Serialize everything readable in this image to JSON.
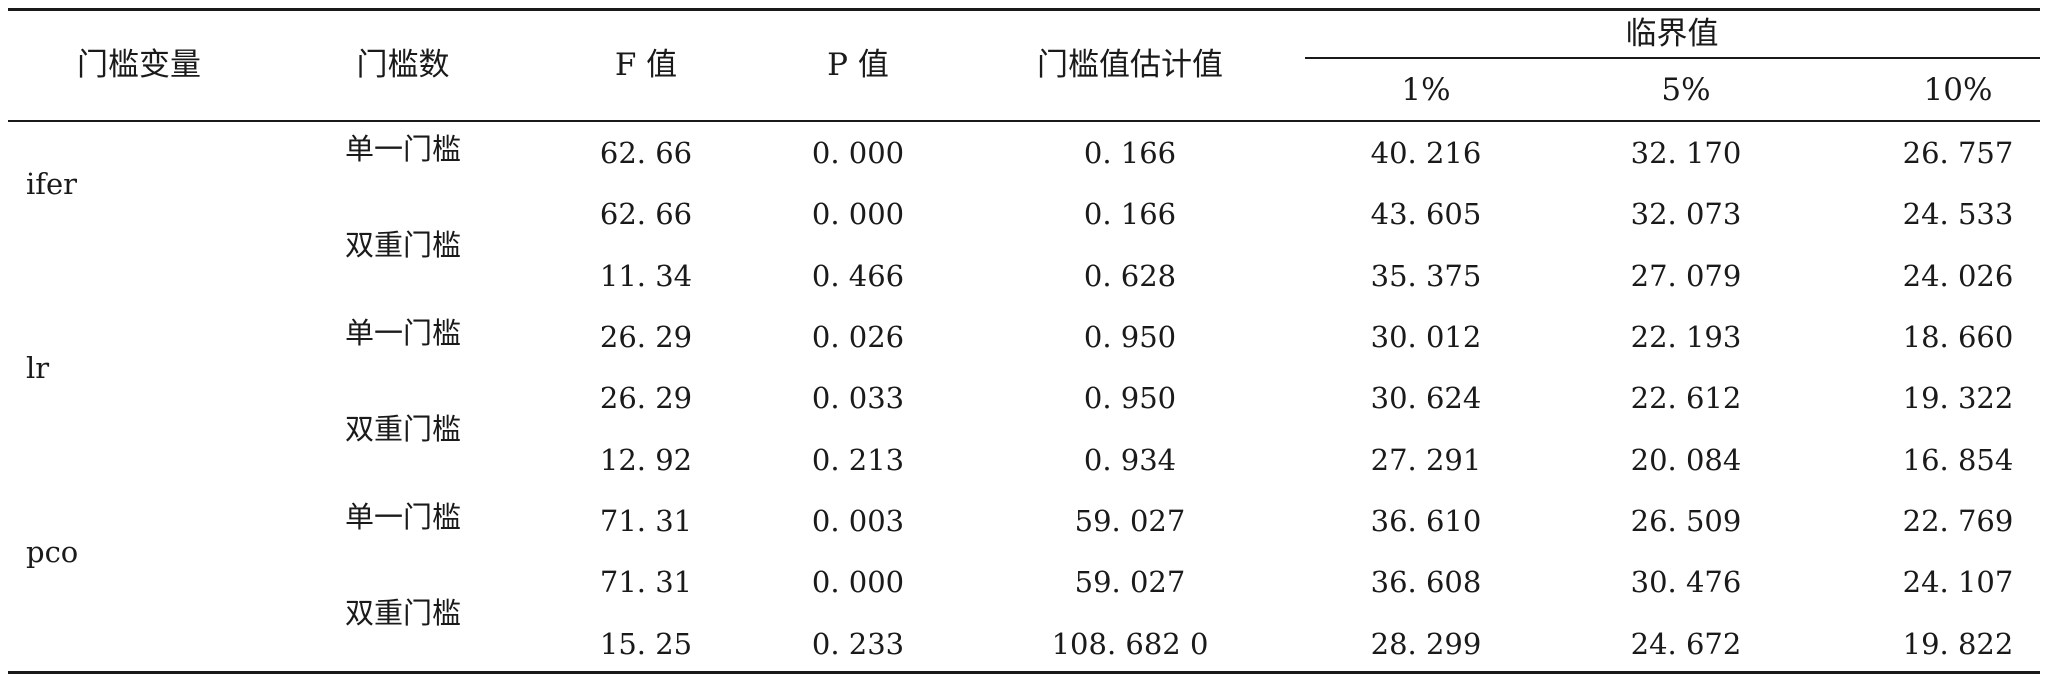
{
  "headers": {
    "variable": "门槛变量",
    "threshold_count": "门槛数",
    "f_value": "F 值",
    "p_value": "P 值",
    "threshold_estimate": "门槛值估计值",
    "critical_values": "临界值",
    "critical_1": "1%",
    "critical_5": "5%",
    "critical_10": "10%"
  },
  "groups": [
    {
      "variable": "ifer",
      "single_label": "单一门槛",
      "double_label": "双重门槛",
      "rows": [
        {
          "f": "62. 66",
          "p": "0. 000",
          "est": "0. 166",
          "c1": "40. 216",
          "c5": "32. 170",
          "c10": "26. 757"
        },
        {
          "f": "62. 66",
          "p": "0. 000",
          "est": "0. 166",
          "c1": "43. 605",
          "c5": "32. 073",
          "c10": "24. 533"
        },
        {
          "f": "11. 34",
          "p": "0. 466",
          "est": "0. 628",
          "c1": "35. 375",
          "c5": "27. 079",
          "c10": "24. 026"
        }
      ]
    },
    {
      "variable": "lr",
      "single_label": "单一门槛",
      "double_label": "双重门槛",
      "rows": [
        {
          "f": "26. 29",
          "p": "0. 026",
          "est": "0. 950",
          "c1": "30. 012",
          "c5": "22. 193",
          "c10": "18. 660"
        },
        {
          "f": "26. 29",
          "p": "0. 033",
          "est": "0. 950",
          "c1": "30. 624",
          "c5": "22. 612",
          "c10": "19. 322"
        },
        {
          "f": "12. 92",
          "p": "0. 213",
          "est": "0. 934",
          "c1": "27. 291",
          "c5": "20. 084",
          "c10": "16. 854"
        }
      ]
    },
    {
      "variable": "pco",
      "single_label": "单一门槛",
      "double_label": "双重门槛",
      "rows": [
        {
          "f": "71. 31",
          "p": "0. 003",
          "est": "59. 027",
          "c1": "36. 610",
          "c5": "26. 509",
          "c10": "22. 769"
        },
        {
          "f": "71. 31",
          "p": "0. 000",
          "est": "59. 027",
          "c1": "36. 608",
          "c5": "30. 476",
          "c10": "24. 107"
        },
        {
          "f": "15. 25",
          "p": "0. 233",
          "est": "108. 682 0",
          "c1": "28. 299",
          "c5": "24. 672",
          "c10": "19. 822"
        }
      ]
    }
  ]
}
